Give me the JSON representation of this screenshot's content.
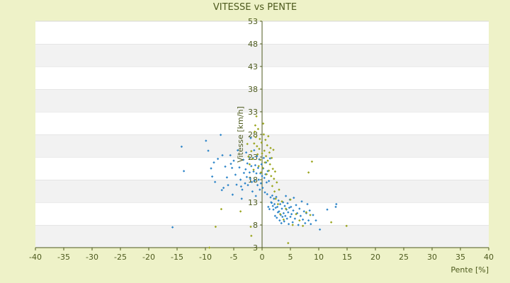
{
  "chart_data": {
    "type": "scatter",
    "title": "VITESSE vs PENTE",
    "xlabel": "Pente [%]",
    "ylabel": "Vitesse [km/h]",
    "xlim": [
      -40,
      40
    ],
    "ylim": [
      3,
      53
    ],
    "x_ticks": [
      -40,
      -35,
      -30,
      -25,
      -20,
      -15,
      -10,
      -5,
      0,
      5,
      10,
      15,
      20,
      25,
      30,
      35,
      40
    ],
    "y_ticks": [
      3,
      8,
      13,
      18,
      23,
      28,
      33,
      38,
      43,
      48,
      53
    ],
    "grid": "horizontal bands",
    "legend": "none",
    "series": [
      {
        "color": "#2f86c9",
        "points": [
          [
            -15.8,
            7.5
          ],
          [
            -13.8,
            19.9
          ],
          [
            -14.2,
            25.3
          ],
          [
            -9.9,
            26.6
          ],
          [
            -9.5,
            24.4
          ],
          [
            -9.0,
            20.5
          ],
          [
            -8.8,
            18.7
          ],
          [
            -8.5,
            21.8
          ],
          [
            -8.3,
            17.5
          ],
          [
            -7.8,
            22.6
          ],
          [
            -7.3,
            27.9
          ],
          [
            -7.0,
            23.4
          ],
          [
            -7.1,
            15.7
          ],
          [
            -6.8,
            16.2
          ],
          [
            -6.5,
            20.9
          ],
          [
            -6.2,
            18.5
          ],
          [
            -6.0,
            16.8
          ],
          [
            -5.6,
            23.4
          ],
          [
            -5.5,
            21.5
          ],
          [
            -5.3,
            20.6
          ],
          [
            -5.2,
            14.7
          ],
          [
            -5.0,
            22.2
          ],
          [
            -4.7,
            19.1
          ],
          [
            -4.5,
            16.9
          ],
          [
            -4.3,
            24.5
          ],
          [
            -4.0,
            20.7
          ],
          [
            -3.8,
            18.0
          ],
          [
            -3.7,
            16.5
          ],
          [
            -3.6,
            13.8
          ],
          [
            -3.5,
            15.8
          ],
          [
            -3.3,
            22.4
          ],
          [
            -3.2,
            19.5
          ],
          [
            -3.0,
            17.2
          ],
          [
            -2.9,
            20.3
          ],
          [
            -2.8,
            24.0
          ],
          [
            -2.7,
            18.6
          ],
          [
            -2.6,
            21.6
          ],
          [
            -2.5,
            16.8
          ],
          [
            -2.3,
            23.0
          ],
          [
            -2.2,
            19.6
          ],
          [
            -2.0,
            27.2
          ],
          [
            -2.1,
            18.2
          ],
          [
            -1.9,
            21.0
          ],
          [
            -1.8,
            17.5
          ],
          [
            -1.7,
            15.4
          ],
          [
            -1.6,
            22.8
          ],
          [
            -1.5,
            19.8
          ],
          [
            -1.4,
            24.5
          ],
          [
            -1.3,
            17.8
          ],
          [
            -1.2,
            21.2
          ],
          [
            -1.1,
            14.4
          ],
          [
            -1.0,
            19.4
          ],
          [
            -0.9,
            23.2
          ],
          [
            -0.8,
            16.8
          ],
          [
            -0.7,
            20.6
          ],
          [
            -0.6,
            18.0
          ],
          [
            -0.5,
            22.5
          ],
          [
            -0.4,
            15.8
          ],
          [
            -0.3,
            19.4
          ],
          [
            -0.2,
            17.2
          ],
          [
            -0.1,
            21.4
          ],
          [
            0.0,
            18.8
          ],
          [
            0.1,
            16.2
          ],
          [
            0.2,
            20.5
          ],
          [
            0.3,
            22.8
          ],
          [
            0.4,
            18.4
          ],
          [
            0.5,
            15.2
          ],
          [
            0.6,
            19.2
          ],
          [
            0.7,
            21.8
          ],
          [
            0.8,
            17.4
          ],
          [
            0.9,
            14.8
          ],
          [
            1.0,
            19.9
          ],
          [
            1.1,
            12.0
          ],
          [
            1.2,
            17.7
          ],
          [
            1.3,
            11.5
          ],
          [
            1.4,
            22.7
          ],
          [
            1.5,
            14.1
          ],
          [
            1.6,
            13.0
          ],
          [
            1.7,
            12.9
          ],
          [
            1.8,
            14.5
          ],
          [
            1.9,
            12.2
          ],
          [
            2.0,
            11.4
          ],
          [
            2.1,
            13.8
          ],
          [
            2.2,
            12.6
          ],
          [
            2.3,
            10.0
          ],
          [
            2.4,
            11.8
          ],
          [
            2.5,
            14.2
          ],
          [
            2.6,
            9.6
          ],
          [
            2.7,
            12.0
          ],
          [
            2.8,
            10.8
          ],
          [
            2.9,
            13.4
          ],
          [
            3.0,
            11.0
          ],
          [
            3.1,
            9.0
          ],
          [
            3.2,
            12.6
          ],
          [
            3.3,
            10.2
          ],
          [
            3.4,
            8.4
          ],
          [
            3.5,
            11.6
          ],
          [
            3.6,
            9.8
          ],
          [
            3.7,
            13.0
          ],
          [
            3.8,
            10.6
          ],
          [
            3.9,
            8.8
          ],
          [
            4.0,
            12.2
          ],
          [
            4.1,
            10.0
          ],
          [
            4.2,
            14.4
          ],
          [
            4.3,
            11.4
          ],
          [
            4.4,
            9.4
          ],
          [
            4.5,
            12.8
          ],
          [
            4.6,
            10.8
          ],
          [
            4.7,
            8.2
          ],
          [
            4.8,
            11.8
          ],
          [
            4.9,
            13.6
          ],
          [
            5.0,
            9.8
          ],
          [
            5.1,
            12.0
          ],
          [
            5.2,
            10.4
          ],
          [
            5.4,
            8.6
          ],
          [
            5.5,
            11.2
          ],
          [
            5.6,
            14.0
          ],
          [
            5.8,
            9.4
          ],
          [
            6.0,
            12.4
          ],
          [
            6.2,
            10.6
          ],
          [
            6.4,
            8.0
          ],
          [
            6.6,
            11.6
          ],
          [
            6.8,
            10.0
          ],
          [
            7.0,
            13.2
          ],
          [
            7.2,
            9.2
          ],
          [
            7.4,
            11.0
          ],
          [
            7.6,
            8.4
          ],
          [
            7.8,
            10.6
          ],
          [
            8.0,
            12.6
          ],
          [
            8.2,
            9.0
          ],
          [
            8.4,
            11.2
          ],
          [
            8.6,
            8.2
          ],
          [
            9.0,
            10.2
          ],
          [
            9.5,
            9.0
          ],
          [
            10.2,
            7.0
          ],
          [
            11.5,
            11.4
          ],
          [
            13.0,
            12.0
          ],
          [
            13.1,
            12.6
          ]
        ]
      },
      {
        "color": "#9aa51e",
        "points": [
          [
            -9.3,
            3.0
          ],
          [
            -8.2,
            7.6
          ],
          [
            -7.2,
            11.5
          ],
          [
            -3.8,
            11.0
          ],
          [
            -2.0,
            7.6
          ],
          [
            -1.9,
            5.6
          ],
          [
            -2.6,
            25.9
          ],
          [
            -2.4,
            23.1
          ],
          [
            -2.2,
            21.4
          ],
          [
            -1.9,
            24.3
          ],
          [
            -1.7,
            22.6
          ],
          [
            -1.5,
            20.2
          ],
          [
            -1.4,
            26.0
          ],
          [
            -1.3,
            28.6
          ],
          [
            -1.2,
            30.0
          ],
          [
            -1.1,
            27.4
          ],
          [
            -1.0,
            32.0
          ],
          [
            -0.9,
            25.4
          ],
          [
            -0.8,
            23.6
          ],
          [
            -0.7,
            29.2
          ],
          [
            -0.6,
            21.0
          ],
          [
            -0.5,
            24.8
          ],
          [
            -0.4,
            27.0
          ],
          [
            -0.3,
            22.4
          ],
          [
            -0.2,
            19.6
          ],
          [
            -0.1,
            26.2
          ],
          [
            0.0,
            23.8
          ],
          [
            0.1,
            20.6
          ],
          [
            0.2,
            30.4
          ],
          [
            0.3,
            28.0
          ],
          [
            0.4,
            24.4
          ],
          [
            0.5,
            21.8
          ],
          [
            0.6,
            26.8
          ],
          [
            0.7,
            23.2
          ],
          [
            0.8,
            19.2
          ],
          [
            0.9,
            25.6
          ],
          [
            1.0,
            22.2
          ],
          [
            1.1,
            27.6
          ],
          [
            1.2,
            20.0
          ],
          [
            1.3,
            24.0
          ],
          [
            1.4,
            21.4
          ],
          [
            1.5,
            25.0
          ],
          [
            1.6,
            18.8
          ],
          [
            1.7,
            22.8
          ],
          [
            1.8,
            16.6
          ],
          [
            1.9,
            20.4
          ],
          [
            2.0,
            24.6
          ],
          [
            2.1,
            18.2
          ],
          [
            2.2,
            15.4
          ],
          [
            2.3,
            19.8
          ],
          [
            2.4,
            13.8
          ],
          [
            2.6,
            17.4
          ],
          [
            2.8,
            12.6
          ],
          [
            3.0,
            15.8
          ],
          [
            3.2,
            10.4
          ],
          [
            3.5,
            13.2
          ],
          [
            3.8,
            9.2
          ],
          [
            4.2,
            11.6
          ],
          [
            4.6,
            4.0
          ],
          [
            5.0,
            13.6
          ],
          [
            5.4,
            8.0
          ],
          [
            6.0,
            10.4
          ],
          [
            6.6,
            9.0
          ],
          [
            7.2,
            7.8
          ],
          [
            7.8,
            10.8
          ],
          [
            8.2,
            19.6
          ],
          [
            8.5,
            10.2
          ],
          [
            8.8,
            22.0
          ],
          [
            12.2,
            8.6
          ],
          [
            14.9,
            7.8
          ]
        ]
      }
    ]
  }
}
